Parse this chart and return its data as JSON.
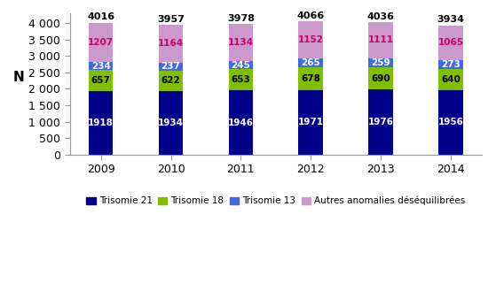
{
  "years": [
    "2009",
    "2010",
    "2011",
    "2012",
    "2013",
    "2014"
  ],
  "trisomie21": [
    1918,
    1934,
    1946,
    1971,
    1976,
    1956
  ],
  "trisomie18": [
    657,
    622,
    653,
    678,
    690,
    640
  ],
  "trisomie13": [
    234,
    237,
    245,
    265,
    259,
    273
  ],
  "autres": [
    1207,
    1164,
    1134,
    1152,
    1111,
    1065
  ],
  "totals": [
    4016,
    3957,
    3978,
    4066,
    4036,
    3934
  ],
  "color_t21": "#00008B",
  "color_t18": "#7FBF00",
  "color_t13": "#4169E1",
  "color_autres": "#CC99CC",
  "ylabel": "N",
  "ylim": [
    0,
    4300
  ],
  "yticks": [
    0,
    500,
    1000,
    1500,
    2000,
    2500,
    3000,
    3500,
    4000
  ],
  "ytick_labels": [
    "0",
    "500",
    "1 000",
    "1 500",
    "2 000",
    "2 500",
    "3 000",
    "3 500",
    "4 000"
  ],
  "legend_labels": [
    "Trisomie 21",
    "Trisomie 18",
    "Trisomie 13",
    "Autres anomalies déséquilibrées"
  ],
  "bar_width": 0.35
}
